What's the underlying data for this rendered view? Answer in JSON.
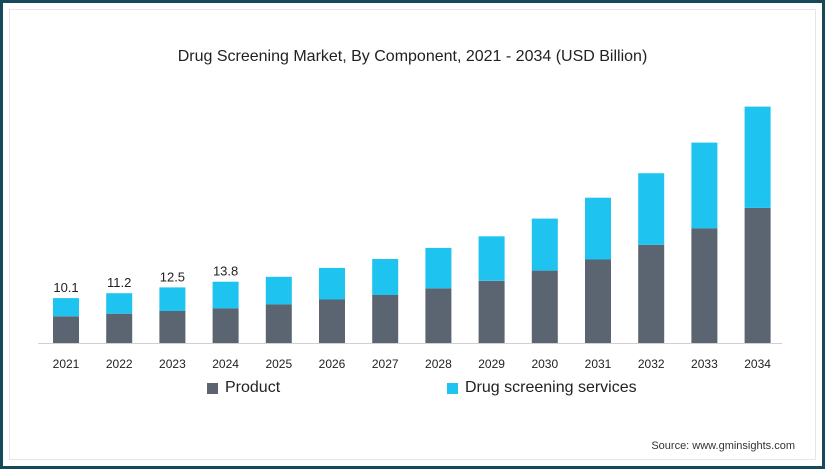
{
  "chart_data": {
    "type": "bar",
    "stacked": true,
    "title": "Drug Screening Market, By Component, 2021 - 2034 (USD Billion)",
    "xlabel": "",
    "ylabel": "",
    "categories": [
      "2021",
      "2022",
      "2023",
      "2024",
      "2025",
      "2026",
      "2027",
      "2028",
      "2029",
      "2030",
      "2031",
      "2032",
      "2033",
      "2034"
    ],
    "series": [
      {
        "name": "Product",
        "color": "#5a6571",
        "values": [
          6.0,
          6.6,
          7.2,
          7.8,
          8.7,
          9.8,
          10.8,
          12.3,
          14.0,
          16.3,
          18.8,
          22.1,
          25.8,
          30.4
        ]
      },
      {
        "name": "Drug screening services",
        "color": "#1ec3f0",
        "values": [
          4.1,
          4.6,
          5.3,
          6.0,
          6.2,
          7.1,
          8.1,
          9.1,
          10.0,
          11.7,
          13.9,
          16.1,
          19.3,
          22.8
        ]
      }
    ],
    "data_labels": [
      "10.1",
      "11.2",
      "12.5",
      "13.8"
    ],
    "ylim": [
      0,
      54
    ],
    "grid": false,
    "legend_position": "bottom"
  },
  "source_text": "Source: www.gminsights.com"
}
